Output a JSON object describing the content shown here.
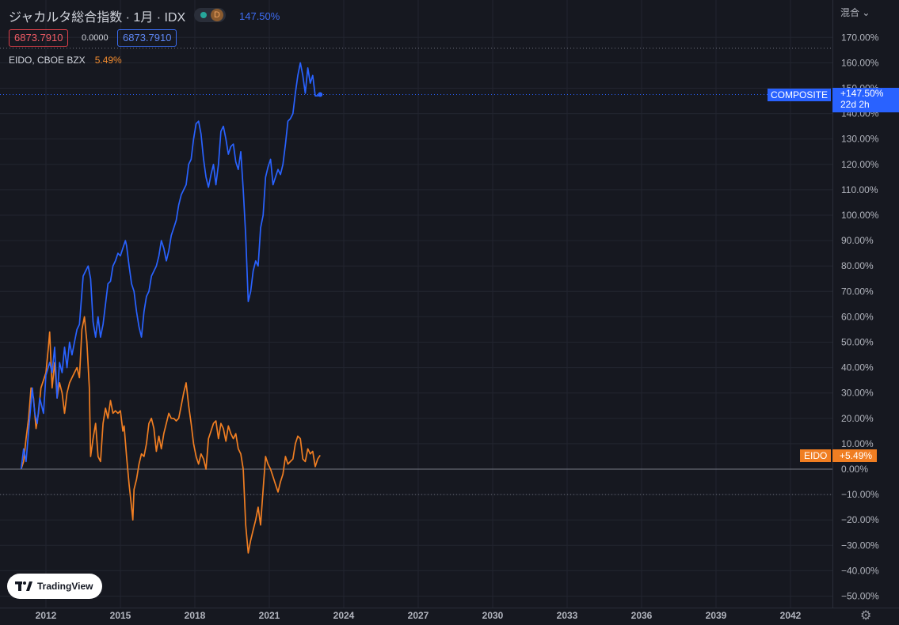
{
  "header": {
    "title": "ジャカルタ総合指数 · 1月 · IDX",
    "status_letter": "D",
    "change_pct": "147.50%",
    "price_left": "6873.7910",
    "price_mid": "0.0000",
    "price_right": "6873.7910",
    "compare_symbol": "EIDO, CBOE BZX",
    "compare_pct": "5.49%",
    "mode_label": "混合"
  },
  "labels": {
    "composite_name": "COMPOSITE",
    "composite_value": "+147.50%",
    "composite_countdown": "22d 2h",
    "eido_name": "EIDO",
    "eido_value": "+5.49%"
  },
  "logo": {
    "text": "TradingView"
  },
  "colors": {
    "background": "#161820",
    "composite": "#2962ff",
    "eido": "#f07e22",
    "grid": "#22252f"
  },
  "chart_data": {
    "type": "line",
    "y_unit": "%",
    "ylim": [
      -55,
      175
    ],
    "xlim": [
      2010.9,
      2044.2
    ],
    "y_ticks": [
      "170.00%",
      "160.00%",
      "150.00%",
      "140.00%",
      "130.00%",
      "120.00%",
      "110.00%",
      "100.00%",
      "90.00%",
      "80.00%",
      "70.00%",
      "60.00%",
      "50.00%",
      "40.00%",
      "30.00%",
      "20.00%",
      "10.00%",
      "0.00%",
      "−10.00%",
      "−20.00%",
      "−30.00%",
      "−40.00%",
      "−50.00%"
    ],
    "x_ticks": [
      "2012",
      "2015",
      "2018",
      "2021",
      "2024",
      "2027",
      "2030",
      "2033",
      "2036",
      "2039",
      "2042"
    ],
    "grid": true,
    "series": [
      {
        "name": "COMPOSITE",
        "points": [
          [
            2011.0,
            0
          ],
          [
            2011.1,
            8
          ],
          [
            2011.2,
            3
          ],
          [
            2011.3,
            15
          ],
          [
            2011.45,
            32
          ],
          [
            2011.55,
            22
          ],
          [
            2011.65,
            18
          ],
          [
            2011.75,
            28
          ],
          [
            2011.9,
            22
          ],
          [
            2012.0,
            37
          ],
          [
            2012.15,
            42
          ],
          [
            2012.25,
            38
          ],
          [
            2012.35,
            48
          ],
          [
            2012.45,
            28
          ],
          [
            2012.55,
            42
          ],
          [
            2012.65,
            38
          ],
          [
            2012.75,
            48
          ],
          [
            2012.85,
            40
          ],
          [
            2012.95,
            50
          ],
          [
            2013.05,
            45
          ],
          [
            2013.15,
            50
          ],
          [
            2013.25,
            55
          ],
          [
            2013.35,
            57
          ],
          [
            2013.5,
            76
          ],
          [
            2013.6,
            78
          ],
          [
            2013.7,
            80
          ],
          [
            2013.8,
            75
          ],
          [
            2013.9,
            58
          ],
          [
            2014.0,
            52
          ],
          [
            2014.1,
            60
          ],
          [
            2014.2,
            52
          ],
          [
            2014.3,
            57
          ],
          [
            2014.4,
            65
          ],
          [
            2014.5,
            73
          ],
          [
            2014.6,
            74
          ],
          [
            2014.7,
            80
          ],
          [
            2014.8,
            82
          ],
          [
            2014.9,
            85
          ],
          [
            2015.0,
            84
          ],
          [
            2015.1,
            87
          ],
          [
            2015.2,
            90
          ],
          [
            2015.25,
            88
          ],
          [
            2015.35,
            80
          ],
          [
            2015.45,
            73
          ],
          [
            2015.55,
            70
          ],
          [
            2015.65,
            62
          ],
          [
            2015.75,
            56
          ],
          [
            2015.85,
            52
          ],
          [
            2015.95,
            62
          ],
          [
            2016.05,
            68
          ],
          [
            2016.15,
            70
          ],
          [
            2016.25,
            76
          ],
          [
            2016.35,
            78
          ],
          [
            2016.45,
            80
          ],
          [
            2016.55,
            84
          ],
          [
            2016.65,
            90
          ],
          [
            2016.75,
            87
          ],
          [
            2016.85,
            82
          ],
          [
            2016.95,
            86
          ],
          [
            2017.05,
            92
          ],
          [
            2017.15,
            95
          ],
          [
            2017.25,
            98
          ],
          [
            2017.35,
            104
          ],
          [
            2017.45,
            108
          ],
          [
            2017.55,
            110
          ],
          [
            2017.65,
            112
          ],
          [
            2017.75,
            120
          ],
          [
            2017.85,
            122
          ],
          [
            2017.95,
            130
          ],
          [
            2018.05,
            136
          ],
          [
            2018.15,
            137
          ],
          [
            2018.25,
            132
          ],
          [
            2018.35,
            122
          ],
          [
            2018.45,
            115
          ],
          [
            2018.55,
            111
          ],
          [
            2018.65,
            116
          ],
          [
            2018.75,
            120
          ],
          [
            2018.85,
            112
          ],
          [
            2018.95,
            120
          ],
          [
            2019.05,
            133
          ],
          [
            2019.15,
            135
          ],
          [
            2019.25,
            130
          ],
          [
            2019.35,
            124
          ],
          [
            2019.45,
            127
          ],
          [
            2019.55,
            128
          ],
          [
            2019.65,
            121
          ],
          [
            2019.75,
            118
          ],
          [
            2019.85,
            125
          ],
          [
            2019.95,
            110
          ],
          [
            2020.05,
            92
          ],
          [
            2020.15,
            66
          ],
          [
            2020.25,
            70
          ],
          [
            2020.35,
            78
          ],
          [
            2020.45,
            82
          ],
          [
            2020.55,
            80
          ],
          [
            2020.65,
            95
          ],
          [
            2020.75,
            100
          ],
          [
            2020.85,
            115
          ],
          [
            2020.95,
            119
          ],
          [
            2021.05,
            122
          ],
          [
            2021.15,
            112
          ],
          [
            2021.25,
            115
          ],
          [
            2021.35,
            118
          ],
          [
            2021.45,
            116
          ],
          [
            2021.55,
            120
          ],
          [
            2021.65,
            128
          ],
          [
            2021.75,
            137
          ],
          [
            2021.85,
            138
          ],
          [
            2021.95,
            140
          ],
          [
            2022.05,
            148
          ],
          [
            2022.15,
            155
          ],
          [
            2022.25,
            160
          ],
          [
            2022.35,
            155
          ],
          [
            2022.45,
            148
          ],
          [
            2022.55,
            158
          ],
          [
            2022.65,
            152
          ],
          [
            2022.75,
            155
          ],
          [
            2022.85,
            147
          ],
          [
            2022.95,
            147
          ],
          [
            2023.05,
            147.5
          ]
        ]
      },
      {
        "name": "EIDO",
        "points": [
          [
            2011.0,
            0
          ],
          [
            2011.1,
            3
          ],
          [
            2011.2,
            12
          ],
          [
            2011.3,
            20
          ],
          [
            2011.4,
            32
          ],
          [
            2011.5,
            28
          ],
          [
            2011.6,
            16
          ],
          [
            2011.7,
            22
          ],
          [
            2011.8,
            32
          ],
          [
            2011.9,
            35
          ],
          [
            2012.0,
            38
          ],
          [
            2012.1,
            48
          ],
          [
            2012.15,
            54
          ],
          [
            2012.25,
            32
          ],
          [
            2012.35,
            42
          ],
          [
            2012.45,
            28
          ],
          [
            2012.55,
            34
          ],
          [
            2012.65,
            30
          ],
          [
            2012.75,
            22
          ],
          [
            2012.85,
            30
          ],
          [
            2012.95,
            34
          ],
          [
            2013.05,
            36
          ],
          [
            2013.15,
            38
          ],
          [
            2013.25,
            40
          ],
          [
            2013.35,
            36
          ],
          [
            2013.45,
            55
          ],
          [
            2013.55,
            60
          ],
          [
            2013.65,
            50
          ],
          [
            2013.75,
            32
          ],
          [
            2013.8,
            5
          ],
          [
            2013.9,
            12
          ],
          [
            2014.0,
            18
          ],
          [
            2014.1,
            5
          ],
          [
            2014.2,
            3
          ],
          [
            2014.3,
            18
          ],
          [
            2014.4,
            24
          ],
          [
            2014.5,
            20
          ],
          [
            2014.6,
            27
          ],
          [
            2014.7,
            22
          ],
          [
            2014.8,
            23
          ],
          [
            2014.9,
            22
          ],
          [
            2015.0,
            23
          ],
          [
            2015.1,
            15
          ],
          [
            2015.15,
            17
          ],
          [
            2015.25,
            5
          ],
          [
            2015.35,
            -6
          ],
          [
            2015.45,
            -15
          ],
          [
            2015.5,
            -20
          ],
          [
            2015.55,
            -8
          ],
          [
            2015.65,
            -4
          ],
          [
            2015.75,
            2
          ],
          [
            2015.85,
            6
          ],
          [
            2015.95,
            5
          ],
          [
            2016.05,
            10
          ],
          [
            2016.15,
            18
          ],
          [
            2016.25,
            20
          ],
          [
            2016.35,
            16
          ],
          [
            2016.45,
            7
          ],
          [
            2016.55,
            13
          ],
          [
            2016.65,
            8
          ],
          [
            2016.75,
            14
          ],
          [
            2016.85,
            18
          ],
          [
            2016.95,
            22
          ],
          [
            2017.05,
            20
          ],
          [
            2017.15,
            20
          ],
          [
            2017.25,
            19
          ],
          [
            2017.35,
            20
          ],
          [
            2017.45,
            25
          ],
          [
            2017.55,
            30
          ],
          [
            2017.65,
            34
          ],
          [
            2017.75,
            25
          ],
          [
            2017.85,
            18
          ],
          [
            2017.95,
            10
          ],
          [
            2018.05,
            5
          ],
          [
            2018.15,
            2
          ],
          [
            2018.25,
            6
          ],
          [
            2018.35,
            4
          ],
          [
            2018.45,
            0
          ],
          [
            2018.55,
            12
          ],
          [
            2018.65,
            15
          ],
          [
            2018.75,
            18
          ],
          [
            2018.85,
            19
          ],
          [
            2018.95,
            12
          ],
          [
            2019.05,
            18
          ],
          [
            2019.15,
            16
          ],
          [
            2019.25,
            11
          ],
          [
            2019.35,
            17
          ],
          [
            2019.45,
            14
          ],
          [
            2019.55,
            12
          ],
          [
            2019.65,
            14
          ],
          [
            2019.75,
            8
          ],
          [
            2019.85,
            6
          ],
          [
            2019.95,
            0
          ],
          [
            2020.05,
            -22
          ],
          [
            2020.15,
            -33
          ],
          [
            2020.25,
            -28
          ],
          [
            2020.35,
            -24
          ],
          [
            2020.45,
            -20
          ],
          [
            2020.55,
            -15
          ],
          [
            2020.65,
            -22
          ],
          [
            2020.75,
            -8
          ],
          [
            2020.85,
            5
          ],
          [
            2020.95,
            2
          ],
          [
            2021.05,
            0
          ],
          [
            2021.15,
            -3
          ],
          [
            2021.25,
            -6
          ],
          [
            2021.35,
            -9
          ],
          [
            2021.45,
            -5
          ],
          [
            2021.55,
            -2
          ],
          [
            2021.65,
            5
          ],
          [
            2021.75,
            2
          ],
          [
            2021.85,
            3
          ],
          [
            2021.95,
            4
          ],
          [
            2022.05,
            10
          ],
          [
            2022.15,
            13
          ],
          [
            2022.25,
            12
          ],
          [
            2022.35,
            4
          ],
          [
            2022.45,
            3
          ],
          [
            2022.55,
            8
          ],
          [
            2022.65,
            6
          ],
          [
            2022.75,
            7
          ],
          [
            2022.85,
            1
          ],
          [
            2022.95,
            4
          ],
          [
            2023.05,
            5.49
          ]
        ]
      }
    ]
  }
}
